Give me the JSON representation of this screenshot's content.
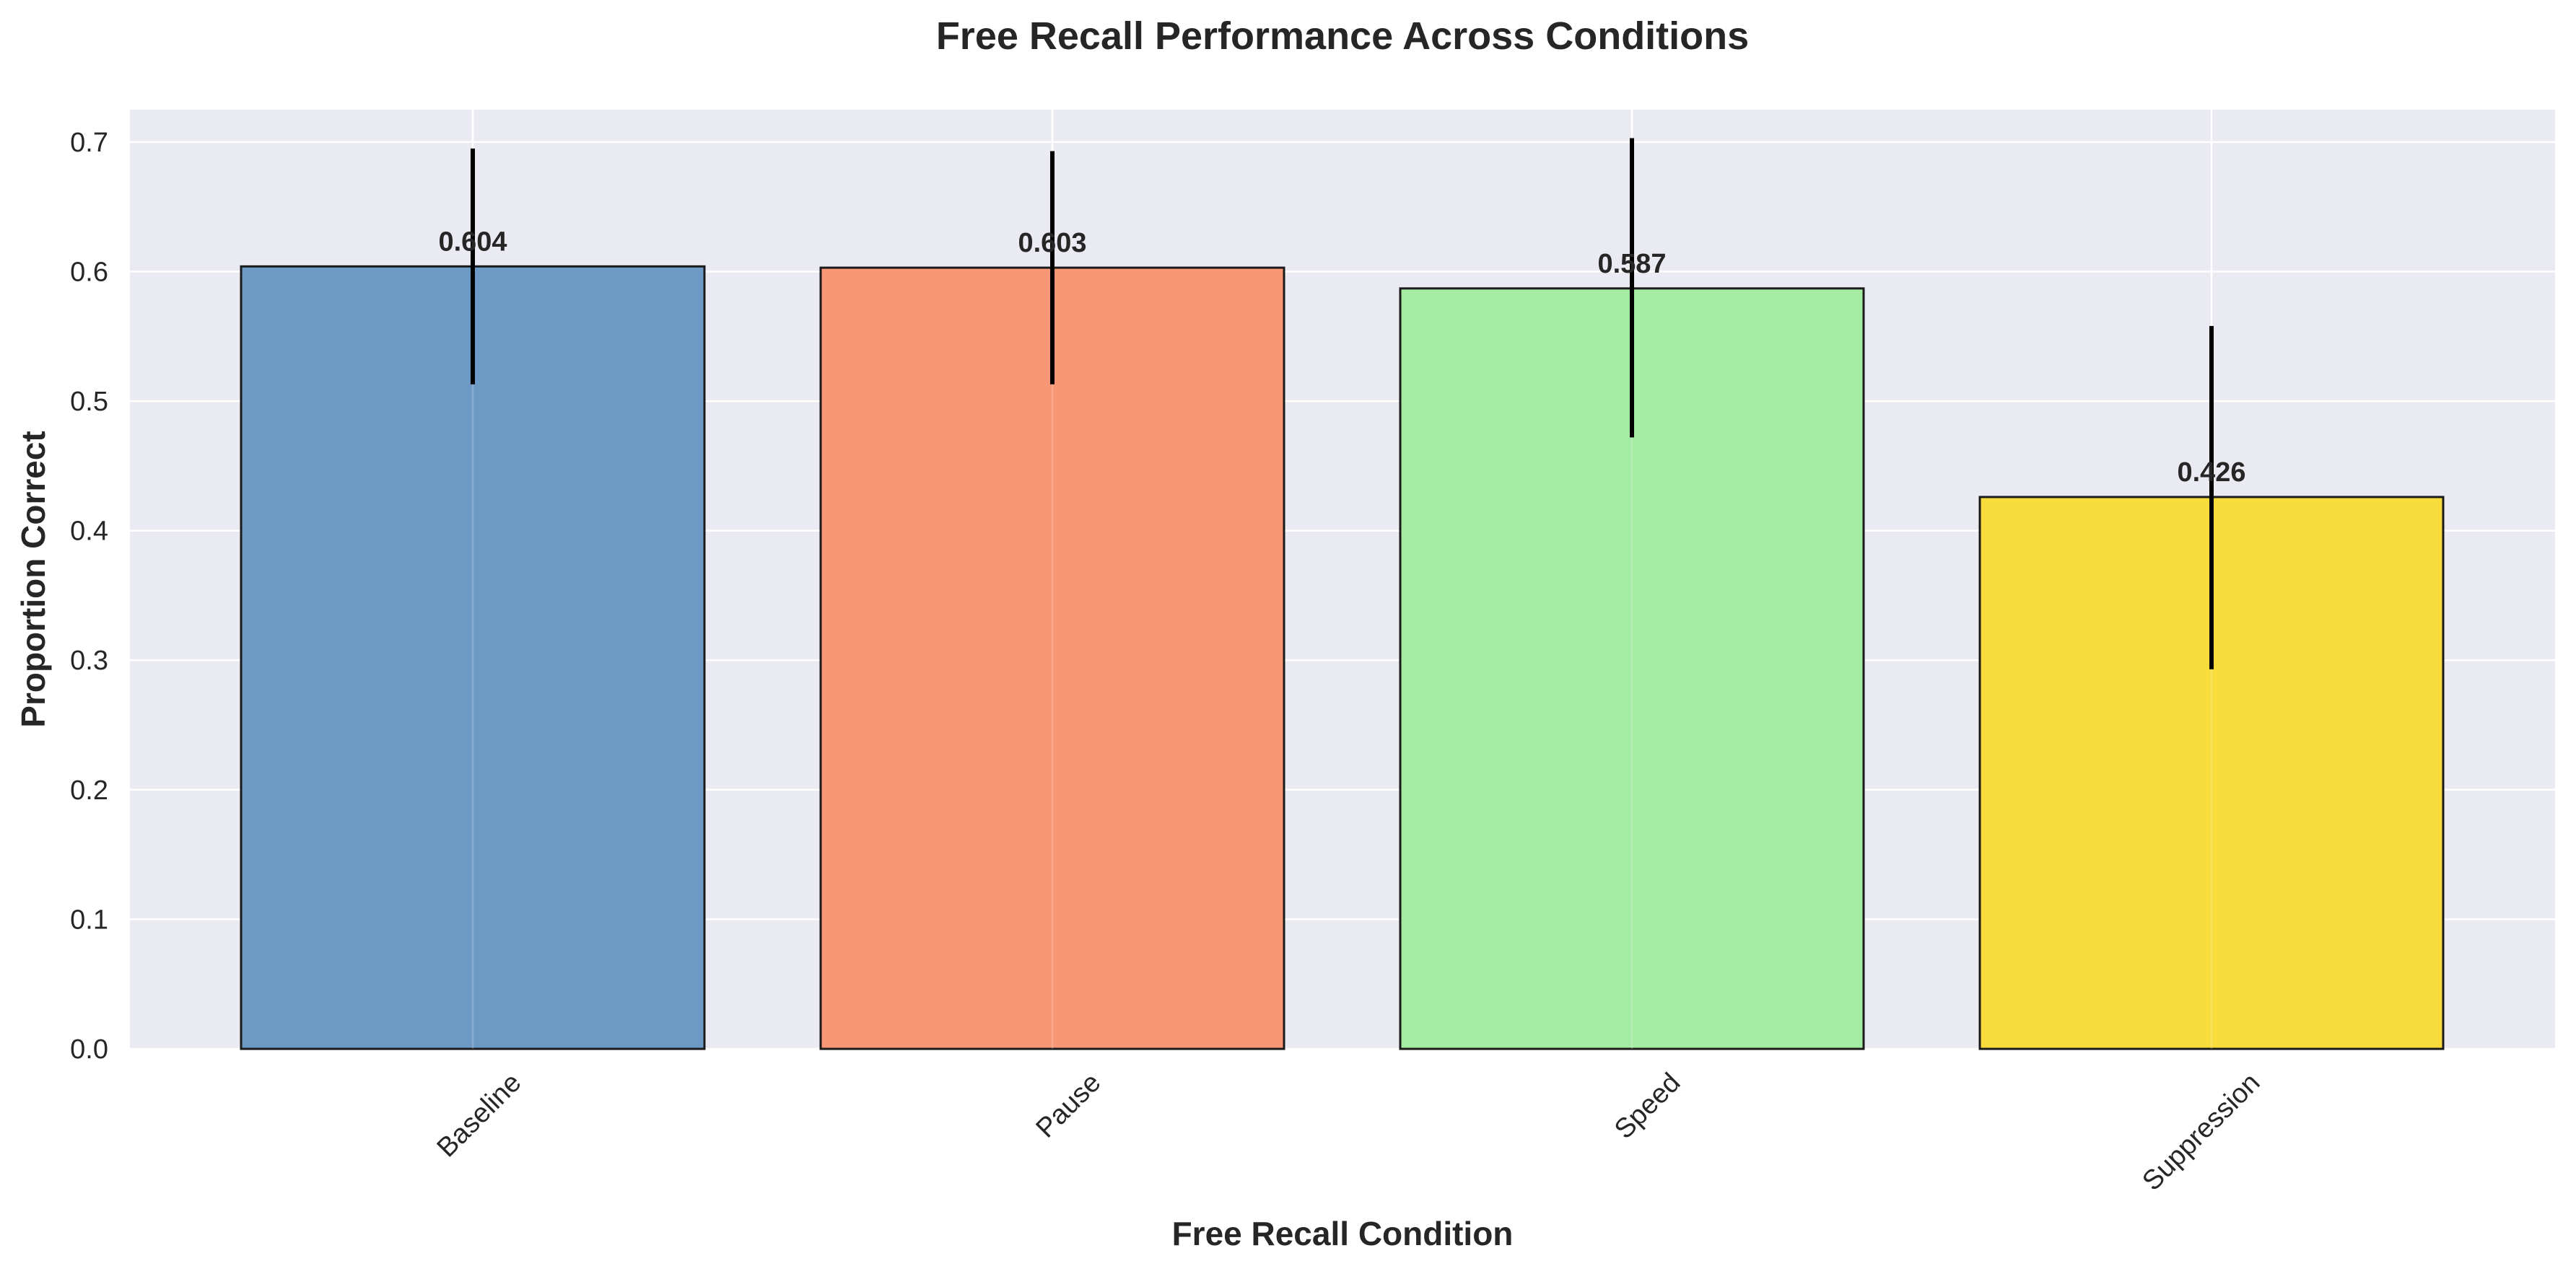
{
  "chart_data": {
    "type": "bar",
    "title": "Free Recall Performance Across Conditions",
    "xlabel": "Free Recall Condition",
    "ylabel": "Proportion Correct",
    "categories": [
      "Baseline",
      "Pause",
      "Speed",
      "Suppression"
    ],
    "values": [
      0.604,
      0.603,
      0.587,
      0.426
    ],
    "value_labels": [
      "0.604",
      "0.603",
      "0.587",
      "0.426"
    ],
    "error_low": [
      0.513,
      0.513,
      0.472,
      0.293
    ],
    "error_high": [
      0.695,
      0.693,
      0.703,
      0.558
    ],
    "colors": [
      "#6897c2",
      "#f89472",
      "#a2eba0",
      "#f8db36"
    ],
    "ylim": [
      0,
      0.725
    ],
    "yticks": [
      0.0,
      0.1,
      0.2,
      0.3,
      0.4,
      0.5,
      0.6,
      0.7
    ],
    "ytick_labels": [
      "0.0",
      "0.1",
      "0.2",
      "0.3",
      "0.4",
      "0.5",
      "0.6",
      "0.7"
    ],
    "grid": true,
    "legend": "none",
    "plot_background": "#eaeaf2",
    "edge_color": "#1a1a1a",
    "error_color": "#000000"
  }
}
